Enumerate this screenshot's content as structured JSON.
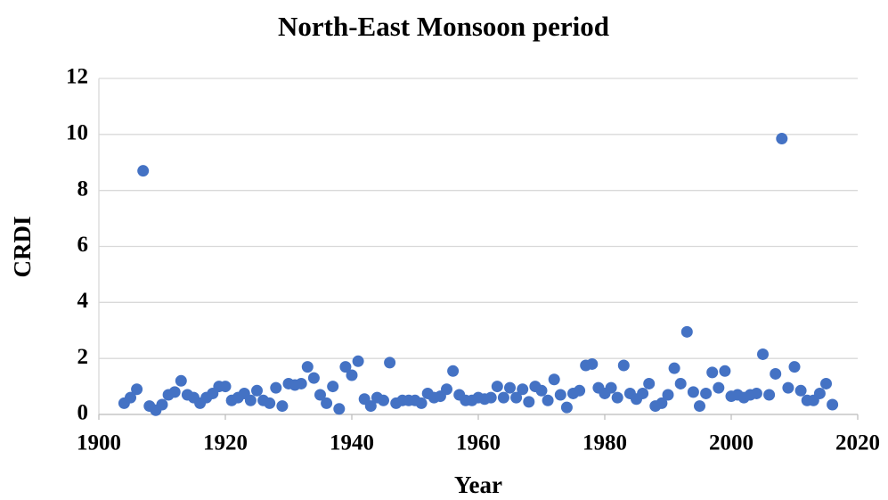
{
  "chart_data": {
    "type": "scatter",
    "title": "North-East Monsoon period",
    "xlabel": "Year",
    "ylabel": "CRDI",
    "x": [
      1904,
      1905,
      1906,
      1907,
      1908,
      1909,
      1910,
      1911,
      1912,
      1913,
      1914,
      1915,
      1916,
      1917,
      1918,
      1919,
      1920,
      1921,
      1922,
      1923,
      1924,
      1925,
      1926,
      1927,
      1928,
      1929,
      1930,
      1931,
      1932,
      1933,
      1934,
      1935,
      1936,
      1937,
      1938,
      1939,
      1940,
      1941,
      1942,
      1943,
      1944,
      1945,
      1946,
      1947,
      1948,
      1949,
      1950,
      1951,
      1952,
      1953,
      1954,
      1955,
      1956,
      1957,
      1958,
      1959,
      1960,
      1961,
      1962,
      1963,
      1964,
      1965,
      1966,
      1967,
      1968,
      1969,
      1970,
      1971,
      1972,
      1973,
      1974,
      1975,
      1976,
      1977,
      1978,
      1979,
      1980,
      1981,
      1982,
      1983,
      1984,
      1985,
      1986,
      1987,
      1988,
      1989,
      1990,
      1991,
      1992,
      1993,
      1994,
      1995,
      1996,
      1997,
      1998,
      1999,
      2000,
      2001,
      2002,
      2003,
      2004,
      2005,
      2006,
      2007,
      2008,
      2009,
      2010,
      2011,
      2012,
      2013,
      2014,
      2015,
      2016
    ],
    "values": [
      0.4,
      0.6,
      0.9,
      8.7,
      0.3,
      0.15,
      0.35,
      0.7,
      0.8,
      1.2,
      0.7,
      0.6,
      0.4,
      0.6,
      0.75,
      1.0,
      1.0,
      0.5,
      0.6,
      0.75,
      0.5,
      0.85,
      0.5,
      0.4,
      0.95,
      0.3,
      1.1,
      1.05,
      1.1,
      1.7,
      1.3,
      0.7,
      0.4,
      1.0,
      0.2,
      1.7,
      1.4,
      1.9,
      0.55,
      0.3,
      0.6,
      0.5,
      1.85,
      0.4,
      0.5,
      0.5,
      0.5,
      0.4,
      0.75,
      0.6,
      0.65,
      0.9,
      1.55,
      0.7,
      0.5,
      0.5,
      0.6,
      0.55,
      0.6,
      1.0,
      0.6,
      0.95,
      0.6,
      0.9,
      0.45,
      1.0,
      0.85,
      0.5,
      1.25,
      0.7,
      0.25,
      0.75,
      0.85,
      1.75,
      1.8,
      0.95,
      0.75,
      0.95,
      0.6,
      1.75,
      0.75,
      0.55,
      0.75,
      1.1,
      0.3,
      0.4,
      0.7,
      1.65,
      1.1,
      2.95,
      0.8,
      0.3,
      0.75,
      1.5,
      0.95,
      1.55,
      0.65,
      0.7,
      0.6,
      0.7,
      0.75,
      2.15,
      0.7,
      1.45,
      9.85,
      0.95,
      1.7,
      0.85,
      0.5,
      0.5,
      0.75,
      1.1,
      0.35
    ],
    "color": "#4472c4",
    "xlim": [
      1900,
      2020
    ],
    "xticks": [
      1900,
      1920,
      1940,
      1960,
      1980,
      2000,
      2020
    ],
    "ylim": [
      0,
      12
    ],
    "yticks": [
      0,
      2,
      4,
      6,
      8,
      10,
      12
    ],
    "grid": true
  }
}
